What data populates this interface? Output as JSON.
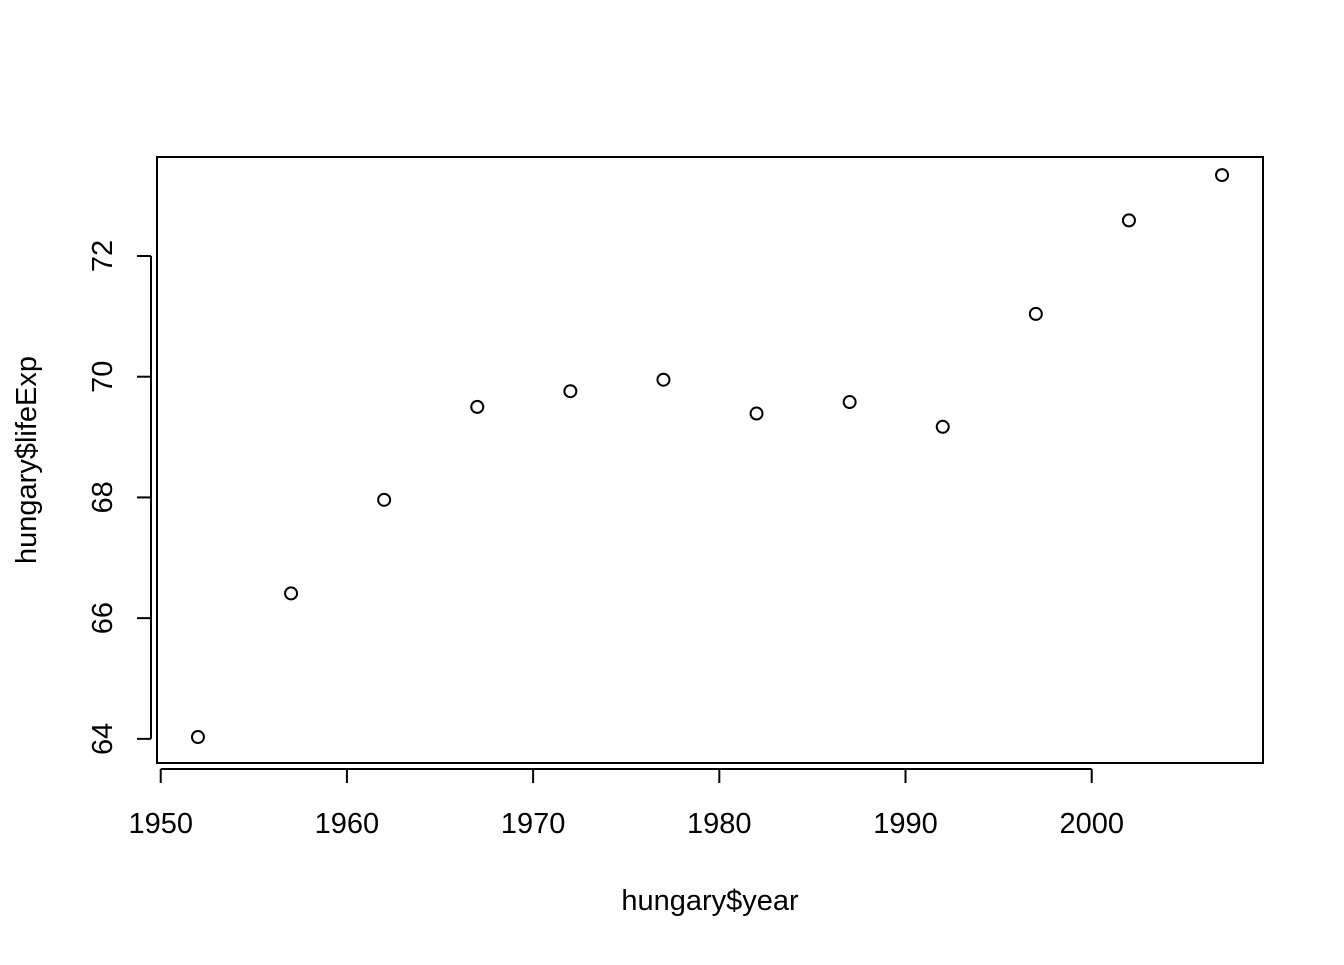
{
  "chart_data": {
    "type": "scatter",
    "title": "",
    "xlabel": "hungary$year",
    "ylabel": "hungary$lifeExp",
    "xlim": [
      1949.8,
      2009.2
    ],
    "ylim": [
      63.6,
      73.64
    ],
    "x_ticks": [
      1950,
      1960,
      1970,
      1980,
      1990,
      2000
    ],
    "y_ticks": [
      64,
      66,
      68,
      70,
      72
    ],
    "grid": false,
    "legend": "none",
    "marker": "open-circle",
    "colors": {
      "points": "#000000",
      "axes": "#000000",
      "background": "#ffffff"
    },
    "x": [
      1952,
      1957,
      1962,
      1967,
      1972,
      1977,
      1982,
      1987,
      1992,
      1997,
      2002,
      2007
    ],
    "y": [
      64.03,
      66.41,
      67.96,
      69.5,
      69.76,
      69.95,
      69.39,
      69.58,
      69.17,
      71.04,
      72.59,
      73.34
    ]
  }
}
